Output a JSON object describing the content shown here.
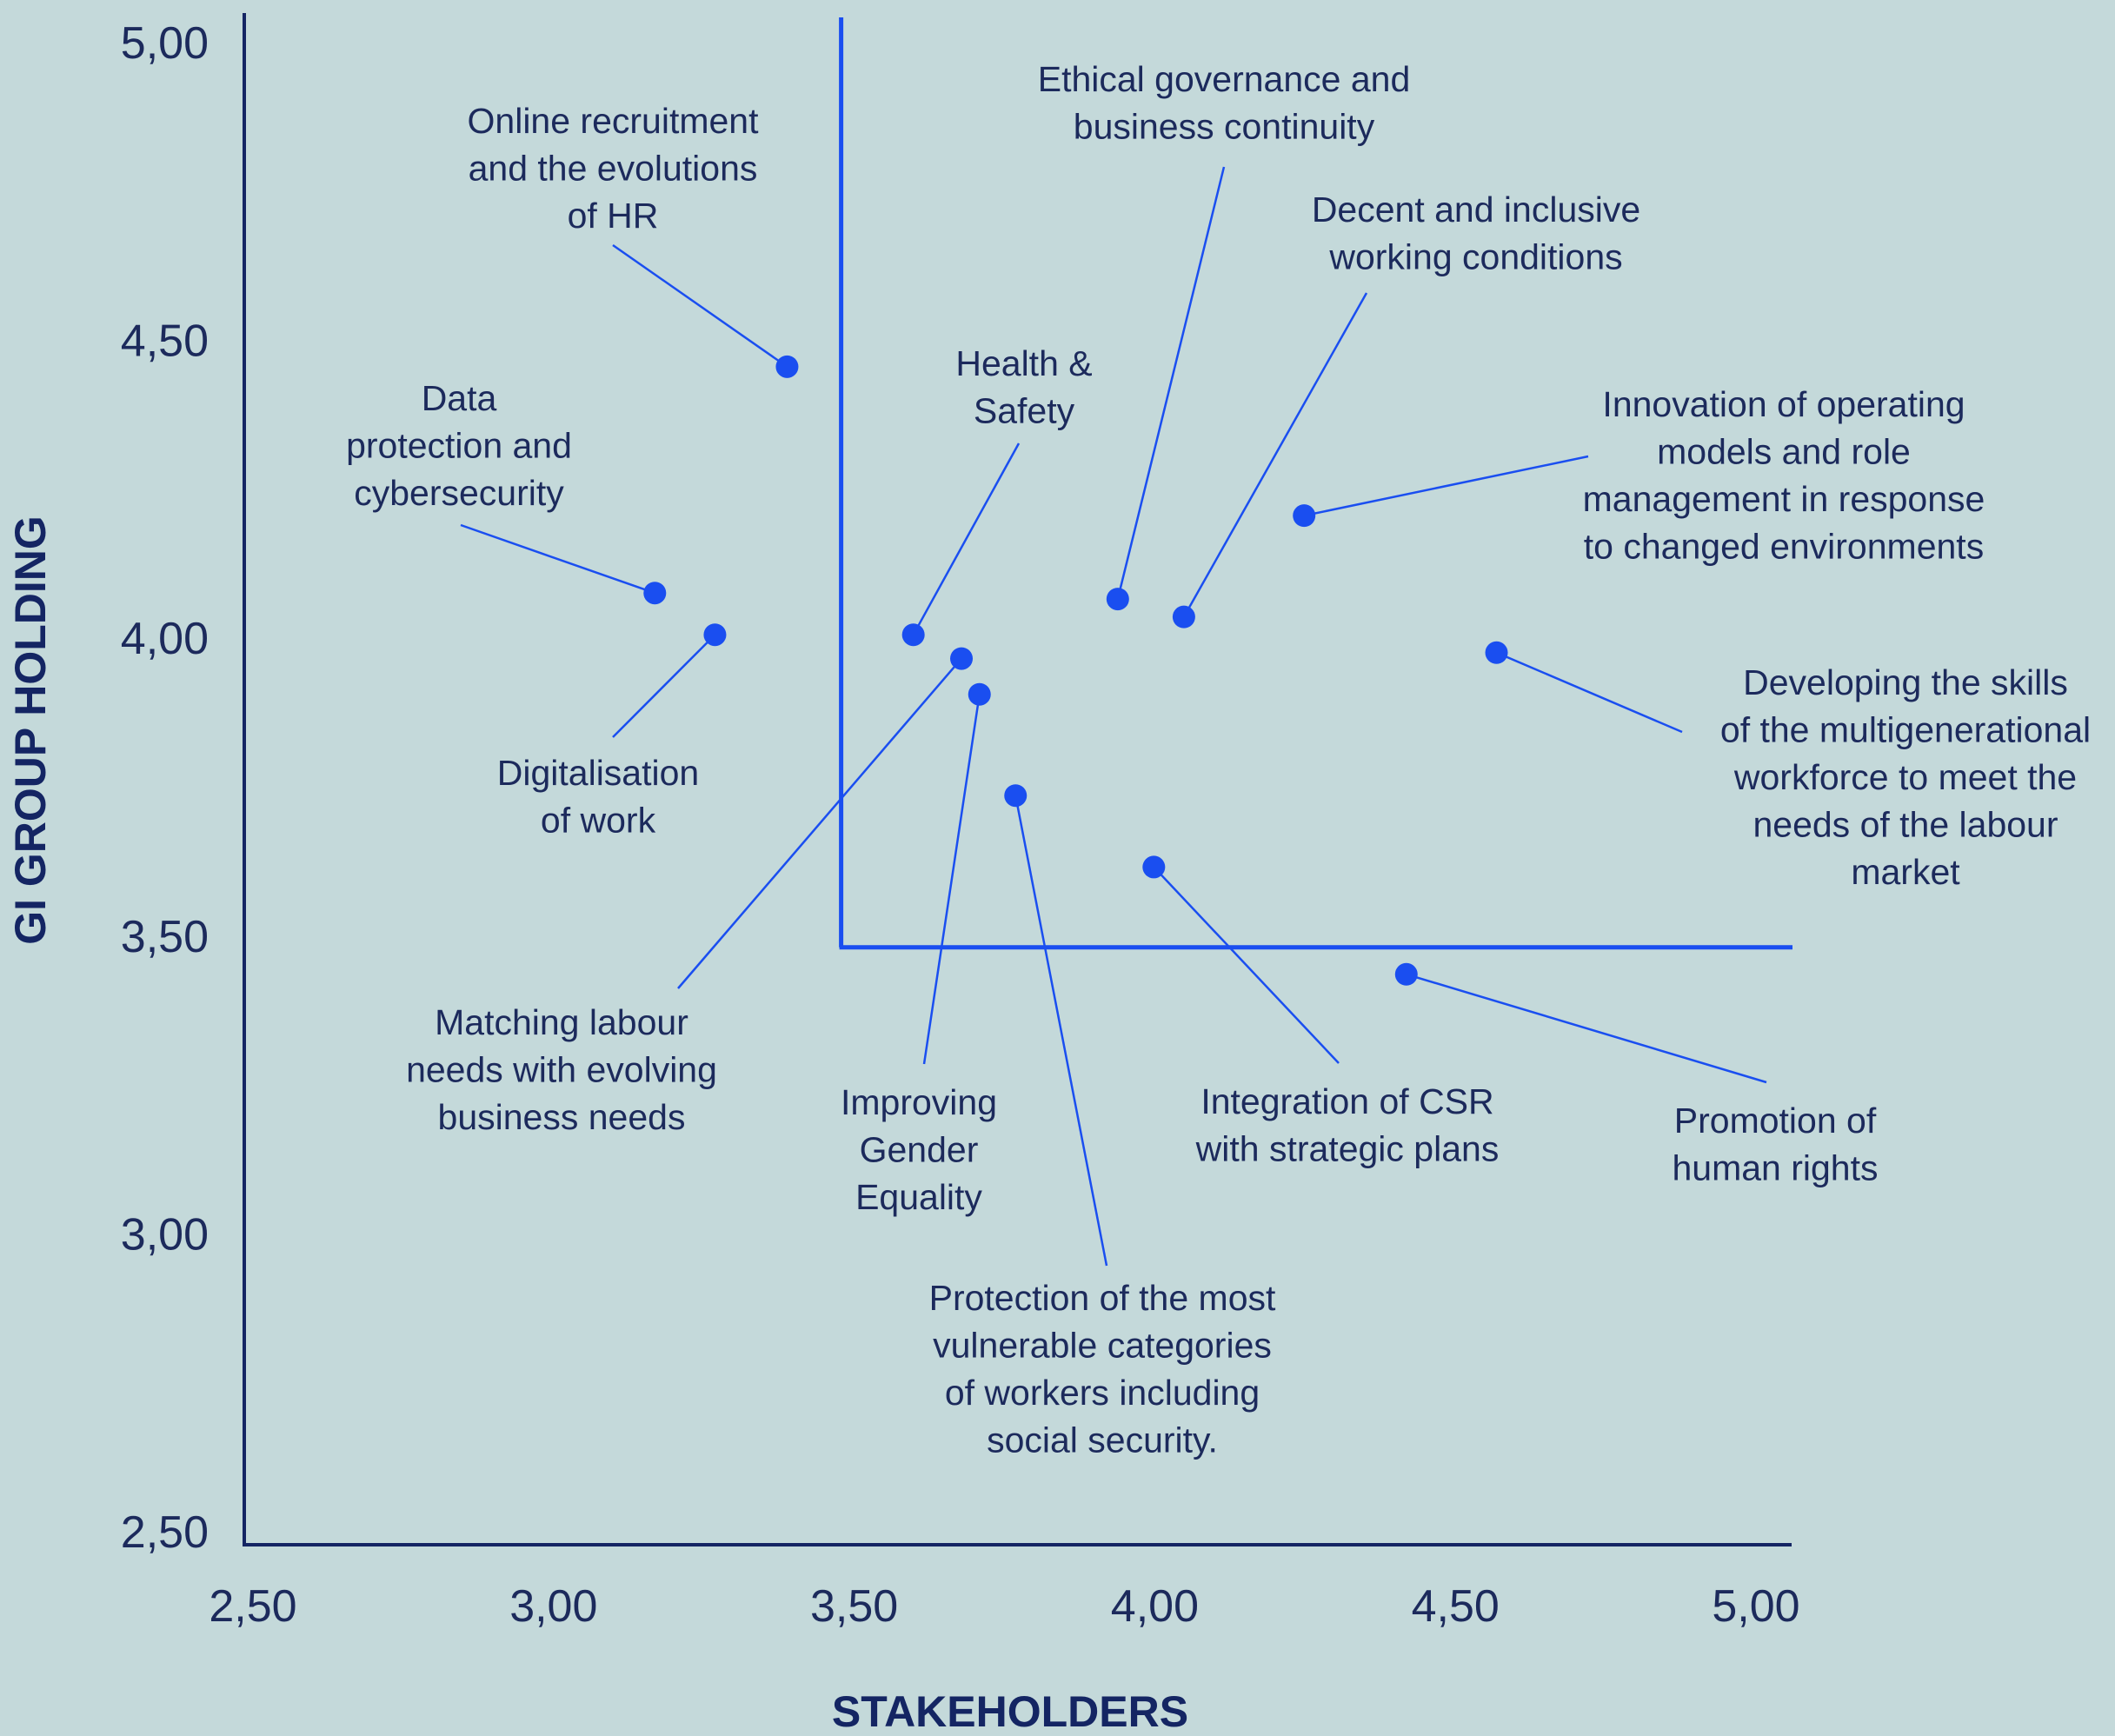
{
  "chart_data": {
    "type": "scatter",
    "xlabel": "STAKEHOLDERS",
    "ylabel": "GI GROUP HOLDING",
    "xlim": [
      2.5,
      5.0
    ],
    "ylim": [
      2.5,
      5.0
    ],
    "x_ticks": [
      "2,50",
      "3,00",
      "3,50",
      "4,00",
      "4,50",
      "5,00"
    ],
    "y_ticks": [
      "2,50",
      "3,00",
      "3,50",
      "4,00",
      "4,50",
      "5,00"
    ],
    "threshold": {
      "x": 3.5,
      "y": 3.5
    },
    "grid": false,
    "legend": "none",
    "colors": {
      "point": "#1a4ef0",
      "axis": "#142563",
      "text": "#1c2a5c",
      "background": "#c4d9da"
    },
    "points": [
      {
        "label": [
          "Online recruitment",
          "and the evolutions",
          "of HR"
        ],
        "x": 3.4,
        "y": 4.45
      },
      {
        "label": [
          "Data",
          "protection and",
          "cybersecurity"
        ],
        "x": 3.18,
        "y": 4.07
      },
      {
        "label": [
          "Digitalisation",
          "of work"
        ],
        "x": 3.28,
        "y": 4.0
      },
      {
        "label": [
          "Health &",
          "Safety"
        ],
        "x": 3.61,
        "y": 4.0
      },
      {
        "label": [
          "Matching labour",
          "needs with evolving",
          "business needs"
        ],
        "x": 3.69,
        "y": 3.96
      },
      {
        "label": [
          "Improving",
          "Gender",
          "Equality"
        ],
        "x": 3.72,
        "y": 3.9
      },
      {
        "label": [
          "Protection of the most",
          "vulnerable categories",
          "of workers including",
          "social security."
        ],
        "x": 3.78,
        "y": 3.73
      },
      {
        "label": [
          "Ethical governance and",
          "business continuity"
        ],
        "x": 3.95,
        "y": 4.06
      },
      {
        "label": [
          "Decent and inclusive",
          "working conditions"
        ],
        "x": 4.06,
        "y": 4.03
      },
      {
        "label": [
          "Integration of CSR",
          "with strategic plans"
        ],
        "x": 4.01,
        "y": 3.61
      },
      {
        "label": [
          "Innovation of operating",
          "models and role",
          "management in response",
          "to changed environments"
        ],
        "x": 4.26,
        "y": 4.2
      },
      {
        "label": [
          "Developing the skills",
          "of the multigenerational",
          "workforce to meet the",
          "needs of the labour",
          "market"
        ],
        "x": 4.58,
        "y": 3.97
      },
      {
        "label": [
          "Promotion of",
          "human rights"
        ],
        "x": 4.43,
        "y": 3.43
      }
    ]
  }
}
